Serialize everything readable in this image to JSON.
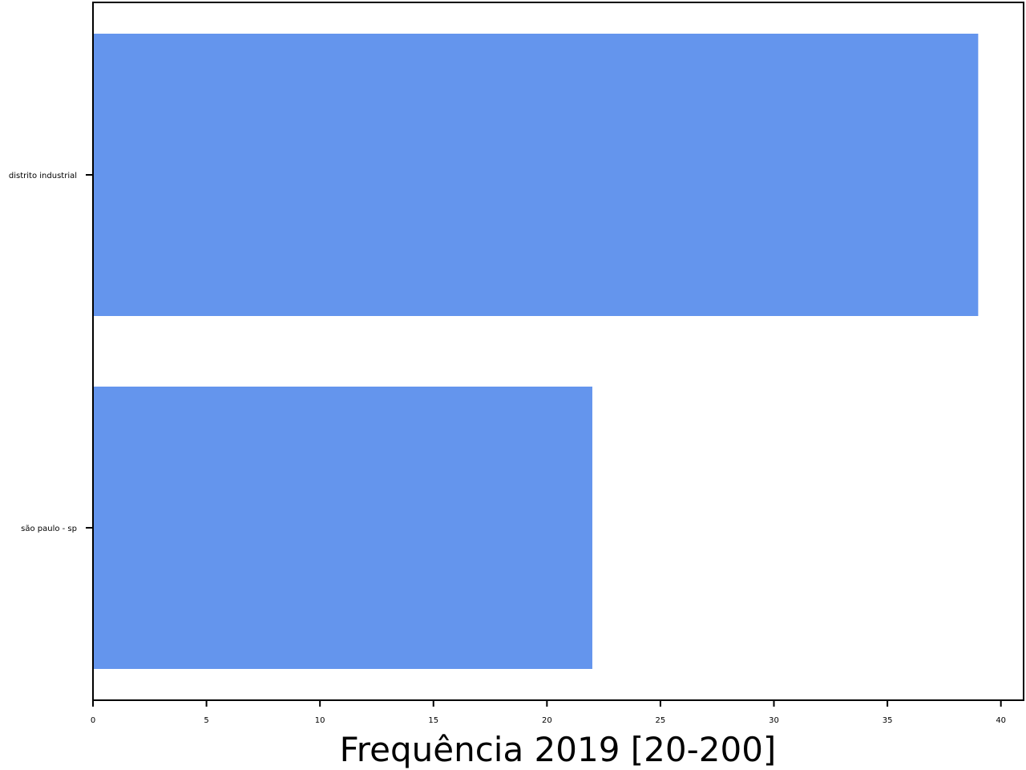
{
  "chart_data": {
    "type": "bar",
    "orientation": "horizontal",
    "categories": [
      "distrito industrial",
      "são paulo - sp"
    ],
    "values": [
      39,
      22
    ],
    "title": "",
    "xlabel": "Frequência 2019 [20-200]",
    "ylabel": "",
    "xlim": [
      0,
      41
    ],
    "xticks": [
      "0",
      "5",
      "10",
      "15",
      "20",
      "25",
      "30",
      "35",
      "40"
    ],
    "grid": false,
    "bar_color": "#6495ED"
  }
}
